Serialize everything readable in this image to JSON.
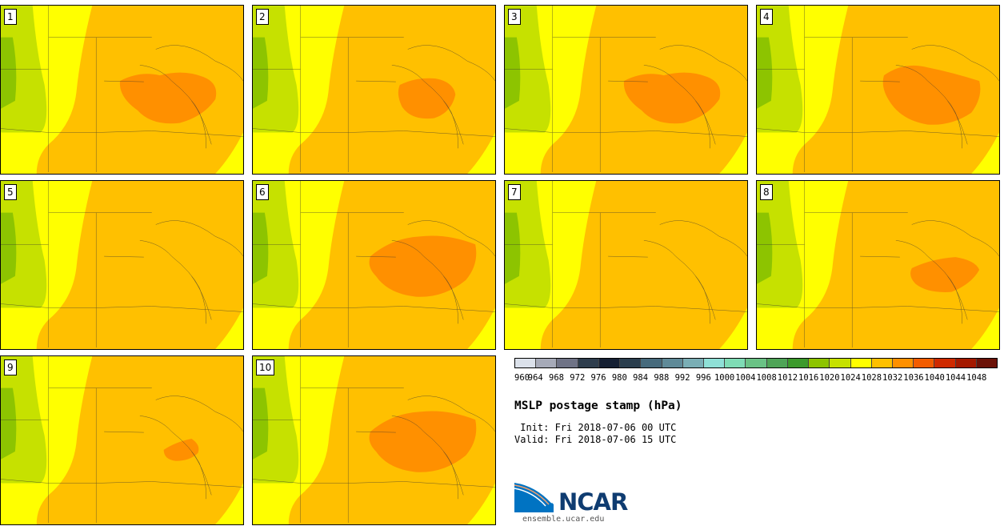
{
  "panels": [
    {
      "label": "1",
      "high": true,
      "blob": "a"
    },
    {
      "label": "2",
      "high": true,
      "blob": "b"
    },
    {
      "label": "3",
      "high": true,
      "blob": "a"
    },
    {
      "label": "4",
      "high": true,
      "blob": "c"
    },
    {
      "label": "5",
      "high": false,
      "blob": "none"
    },
    {
      "label": "6",
      "high": true,
      "blob": "d"
    },
    {
      "label": "7",
      "high": false,
      "blob": "none"
    },
    {
      "label": "8",
      "high": true,
      "blob": "e"
    },
    {
      "label": "9",
      "high": true,
      "blob": "f"
    },
    {
      "label": "10",
      "high": true,
      "blob": "d"
    }
  ],
  "colorbar": {
    "colors": [
      "#dbe1ea",
      "#a6aab8",
      "#6f7386",
      "#2e3d4d",
      "#162033",
      "#2a3e4e",
      "#466a7c",
      "#5f8a98",
      "#7aaeb5",
      "#8fe0d6",
      "#7fdcb5",
      "#6ac285",
      "#4fa457",
      "#3c9a2c",
      "#8dc400",
      "#c6e100",
      "#ffff00",
      "#ffc000",
      "#ff9000",
      "#f25c00",
      "#cf2a00",
      "#a41900",
      "#6b1208"
    ],
    "tick_labels": [
      "960",
      "964",
      "968",
      "972",
      "976",
      "980",
      "984",
      "988",
      "992",
      "996",
      "1000",
      "1004",
      "1008",
      "1012",
      "1016",
      "1020",
      "1024",
      "1028",
      "1032",
      "1036",
      "1040",
      "1044",
      "1048"
    ]
  },
  "title": "MSLP postage stamp (hPa)",
  "init_line": " Init: Fri 2018-07-06 00 UTC",
  "valid_line": "Valid: Fri 2018-07-06 15 UTC",
  "logo": {
    "text": "NCAR",
    "url": "ensemble.ucar.edu"
  },
  "map_colors": {
    "green_dark": "#8dc400",
    "green_light": "#c6e100",
    "yellow": "#ffff00",
    "orange": "#ffc000",
    "dark_orange": "#ff9000"
  }
}
